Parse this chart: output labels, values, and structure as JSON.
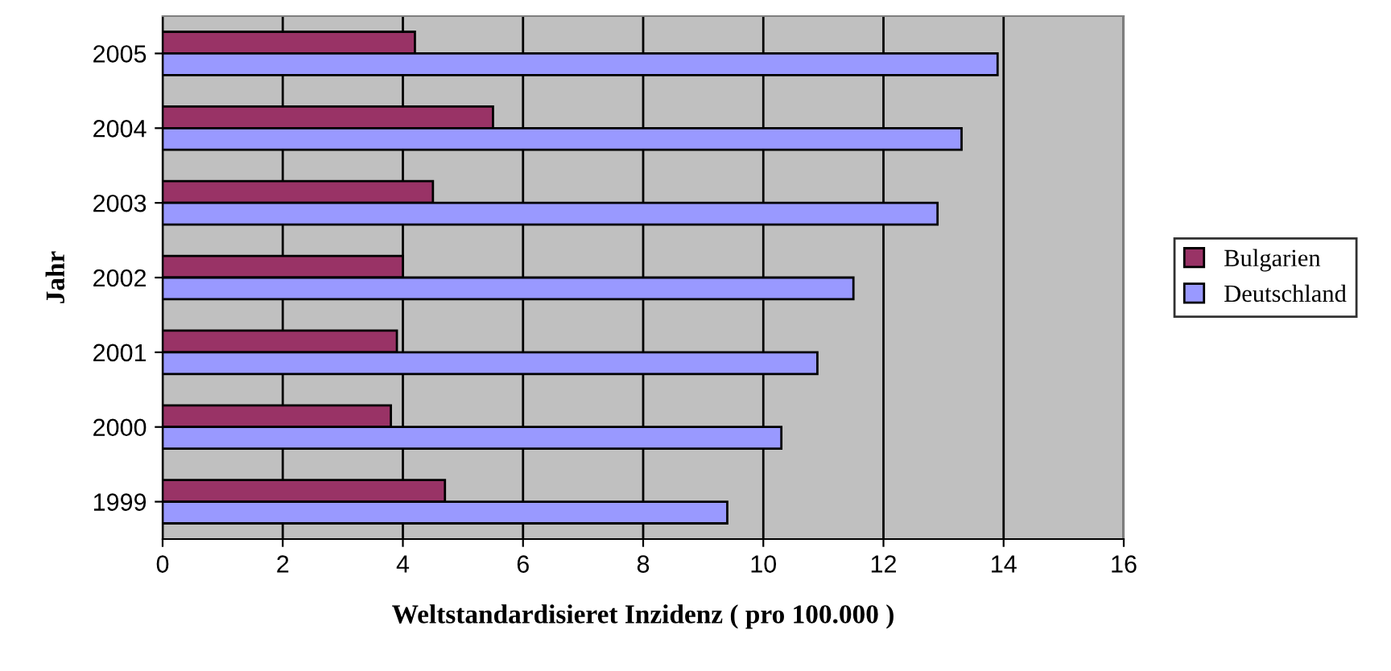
{
  "chart_data": {
    "type": "bar",
    "orientation": "horizontal",
    "xlabel": "Weltstandardisieret Inzidenz ( pro 100.000 )",
    "ylabel": "Jahr",
    "categories": [
      "2005",
      "2004",
      "2003",
      "2002",
      "2001",
      "2000",
      "1999"
    ],
    "series": [
      {
        "name": "Bulgarien",
        "color": "#993366",
        "values": [
          4.2,
          5.5,
          4.5,
          4.0,
          3.9,
          3.8,
          4.7
        ]
      },
      {
        "name": "Deutschland",
        "color": "#9999ff",
        "values": [
          13.9,
          13.3,
          12.9,
          11.5,
          10.9,
          10.3,
          9.4
        ]
      }
    ],
    "xlim": [
      0,
      16
    ],
    "xticks": [
      0,
      2,
      4,
      6,
      8,
      10,
      12,
      14,
      16
    ],
    "grid": "x",
    "legend": "right"
  }
}
